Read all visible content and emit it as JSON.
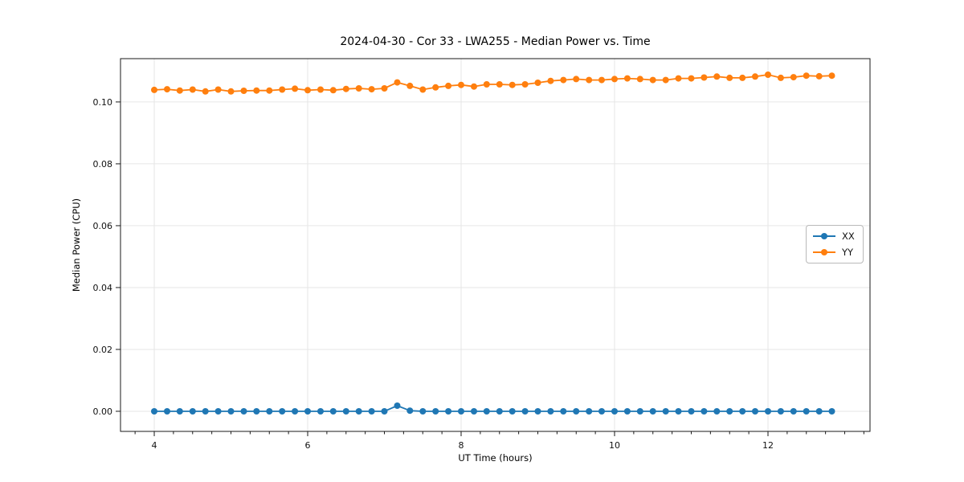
{
  "figure": {
    "background": "#ffffff",
    "axes_color": "#1a1a1a",
    "grid_color": "#e6e6e6"
  },
  "chart_data": {
    "type": "line",
    "title": "2024-04-30 - Cor 33 - LWA255 - Median Power vs. Time",
    "xlabel": "UT Time (hours)",
    "ylabel": "Median Power (CPU)",
    "xlim": [
      3.56,
      13.33
    ],
    "ylim": [
      -0.0065,
      0.114
    ],
    "xticks": [
      4,
      6,
      8,
      10,
      12
    ],
    "xtick_labels": [
      "4",
      "6",
      "8",
      "10",
      "12"
    ],
    "x_minor_step": 0.25,
    "yticks": [
      0.0,
      0.02,
      0.04,
      0.06,
      0.08,
      0.1
    ],
    "ytick_labels": [
      "0.00",
      "0.02",
      "0.04",
      "0.06",
      "0.08",
      "0.10"
    ],
    "grid": true,
    "legend_position": "center right",
    "x": [
      4.0,
      4.167,
      4.333,
      4.5,
      4.667,
      4.833,
      5.0,
      5.167,
      5.333,
      5.5,
      5.667,
      5.833,
      6.0,
      6.167,
      6.333,
      6.5,
      6.667,
      6.833,
      7.0,
      7.167,
      7.333,
      7.5,
      7.667,
      7.833,
      8.0,
      8.167,
      8.333,
      8.5,
      8.667,
      8.833,
      9.0,
      9.167,
      9.333,
      9.5,
      9.667,
      9.833,
      10.0,
      10.167,
      10.333,
      10.5,
      10.667,
      10.833,
      11.0,
      11.167,
      11.333,
      11.5,
      11.667,
      11.833,
      12.0,
      12.167,
      12.333,
      12.5,
      12.667,
      12.833
    ],
    "series": [
      {
        "name": "XX",
        "color": "#1f77b4",
        "values": [
          0.0,
          0.0,
          0.0,
          0.0,
          0.0,
          0.0,
          0.0,
          0.0,
          0.0,
          0.0,
          0.0,
          0.0,
          0.0,
          0.0,
          0.0,
          0.0,
          0.0,
          0.0,
          0.0,
          0.0018,
          0.0002,
          0.0,
          0.0,
          0.0,
          0.0,
          0.0,
          0.0,
          0.0,
          0.0,
          0.0,
          0.0,
          0.0,
          0.0,
          0.0,
          0.0,
          0.0,
          0.0,
          0.0,
          0.0,
          0.0,
          0.0,
          0.0,
          0.0,
          0.0,
          0.0,
          0.0,
          0.0,
          0.0,
          0.0,
          0.0,
          0.0,
          0.0,
          0.0,
          0.0
        ]
      },
      {
        "name": "YY",
        "color": "#ff7f0e",
        "values": [
          0.1039,
          0.1041,
          0.1037,
          0.104,
          0.1034,
          0.104,
          0.1034,
          0.1036,
          0.1037,
          0.1037,
          0.104,
          0.1043,
          0.1038,
          0.104,
          0.1038,
          0.1042,
          0.1044,
          0.1041,
          0.1044,
          0.1063,
          0.1052,
          0.104,
          0.1047,
          0.1052,
          0.1055,
          0.105,
          0.1057,
          0.1057,
          0.1055,
          0.1057,
          0.1062,
          0.1068,
          0.1071,
          0.1074,
          0.1071,
          0.1071,
          0.1074,
          0.1076,
          0.1074,
          0.1071,
          0.1071,
          0.1076,
          0.1076,
          0.1079,
          0.1082,
          0.1078,
          0.1078,
          0.1082,
          0.1088,
          0.1078,
          0.108,
          0.1085,
          0.1083,
          0.1085
        ]
      }
    ]
  }
}
